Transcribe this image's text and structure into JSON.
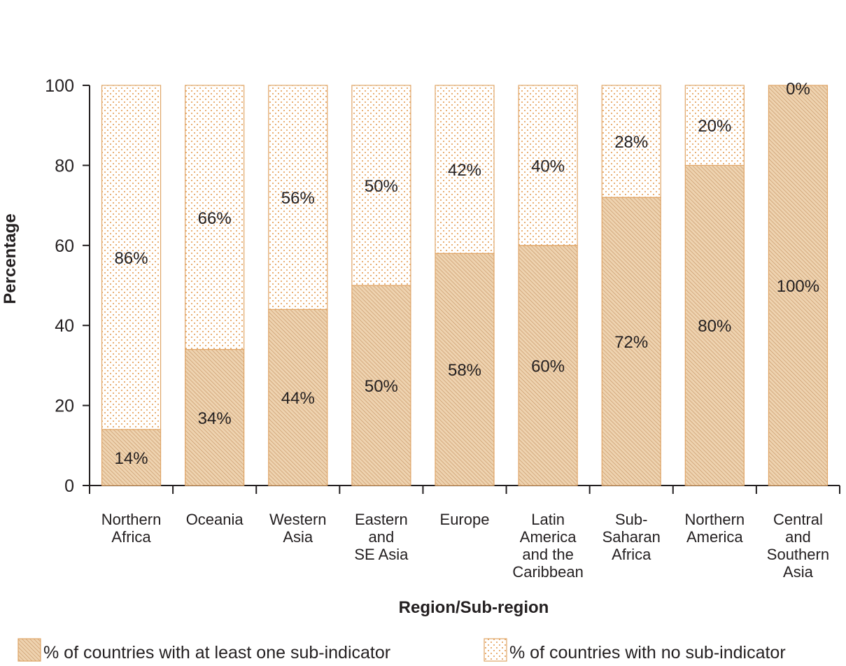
{
  "chart_data": {
    "type": "bar",
    "stacked": true,
    "categories": [
      [
        "Northern",
        "Africa"
      ],
      [
        "Oceania"
      ],
      [
        "Western",
        "Asia"
      ],
      [
        "Eastern",
        "and",
        "SE Asia"
      ],
      [
        "Europe"
      ],
      [
        "Latin",
        "America",
        "and the",
        "Caribbean"
      ],
      [
        "Sub-",
        "Saharan",
        "Africa"
      ],
      [
        "Northern",
        "America"
      ],
      [
        "Central",
        "and",
        "Southern",
        "Asia"
      ]
    ],
    "series": [
      {
        "name": "% of countries with at least one sub-indicator",
        "values": [
          14,
          34,
          44,
          50,
          58,
          60,
          72,
          80,
          100
        ],
        "labels": [
          "14%",
          "34%",
          "44%",
          "50%",
          "58%",
          "60%",
          "72%",
          "80%",
          "100%"
        ]
      },
      {
        "name": "% of countries with no sub-indicator",
        "values": [
          86,
          66,
          56,
          50,
          42,
          40,
          28,
          20,
          0
        ],
        "labels": [
          "86%",
          "66%",
          "56%",
          "50%",
          "42%",
          "40%",
          "28%",
          "20%",
          "0%"
        ]
      }
    ],
    "xlabel": "Region/Sub-region",
    "ylabel": "Percentage",
    "ylim": [
      0,
      100
    ],
    "yticks": [
      "0",
      "20",
      "40",
      "60",
      "80",
      "100"
    ],
    "grid": false,
    "legend_position": "bottom",
    "colors": {
      "bar_fill": "#f0d9b8",
      "bar_stroke": "#e0a566",
      "hatch": "#b8885a",
      "dots": "#e39a4f",
      "axis": "#231f20",
      "text": "#231f20"
    }
  }
}
